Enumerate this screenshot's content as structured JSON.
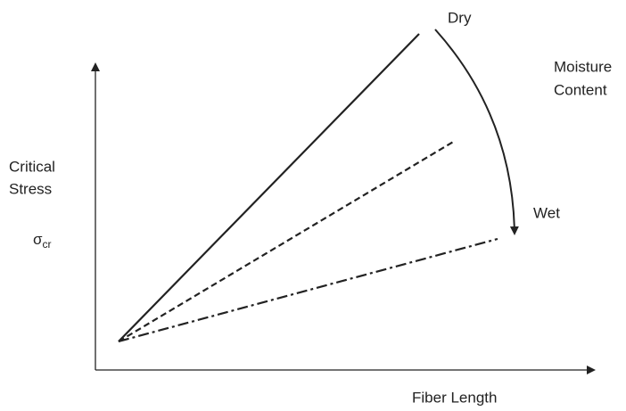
{
  "labels": {
    "dry": "Dry",
    "moisture_content": [
      "Moisture",
      "Content"
    ],
    "wet": "Wet",
    "y_axis": [
      "Critical",
      "Stress"
    ],
    "symbol": {
      "base": "σ",
      "subscript": "cr"
    },
    "x_axis": "Fiber Length"
  }
}
